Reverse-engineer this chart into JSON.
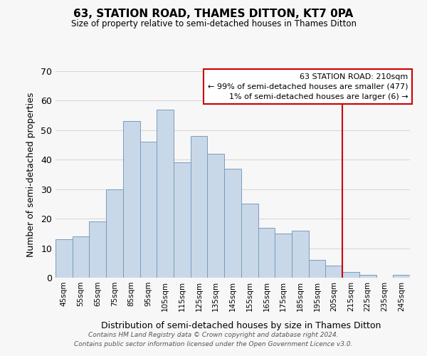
{
  "title": "63, STATION ROAD, THAMES DITTON, KT7 0PA",
  "subtitle": "Size of property relative to semi-detached houses in Thames Ditton",
  "xlabel": "Distribution of semi-detached houses by size in Thames Ditton",
  "ylabel": "Number of semi-detached properties",
  "bin_labels": [
    "45sqm",
    "55sqm",
    "65sqm",
    "75sqm",
    "85sqm",
    "95sqm",
    "105sqm",
    "115sqm",
    "125sqm",
    "135sqm",
    "145sqm",
    "155sqm",
    "165sqm",
    "175sqm",
    "185sqm",
    "195sqm",
    "205sqm",
    "215sqm",
    "225sqm",
    "235sqm",
    "245sqm"
  ],
  "bar_heights": [
    13,
    14,
    19,
    30,
    53,
    46,
    57,
    39,
    48,
    42,
    37,
    25,
    17,
    15,
    16,
    6,
    4,
    2,
    1,
    0,
    1
  ],
  "bar_color": "#c8d8e8",
  "bar_edge_color": "#7a9cbe",
  "bin_edges": [
    40,
    50,
    60,
    70,
    80,
    90,
    100,
    110,
    120,
    130,
    140,
    150,
    160,
    170,
    180,
    190,
    200,
    210,
    220,
    230,
    240,
    250
  ],
  "ylim": [
    0,
    70
  ],
  "yticks": [
    0,
    10,
    20,
    30,
    40,
    50,
    60,
    70
  ],
  "vline_x": 210,
  "vline_color": "#cc0000",
  "annotation_title": "63 STATION ROAD: 210sqm",
  "annotation_line1": "← 99% of semi-detached houses are smaller (477)",
  "annotation_line2": "1% of semi-detached houses are larger (6) →",
  "footer_line1": "Contains HM Land Registry data © Crown copyright and database right 2024.",
  "footer_line2": "Contains public sector information licensed under the Open Government Licence v3.0.",
  "background_color": "#f7f7f7",
  "grid_color": "#d8d8d8"
}
